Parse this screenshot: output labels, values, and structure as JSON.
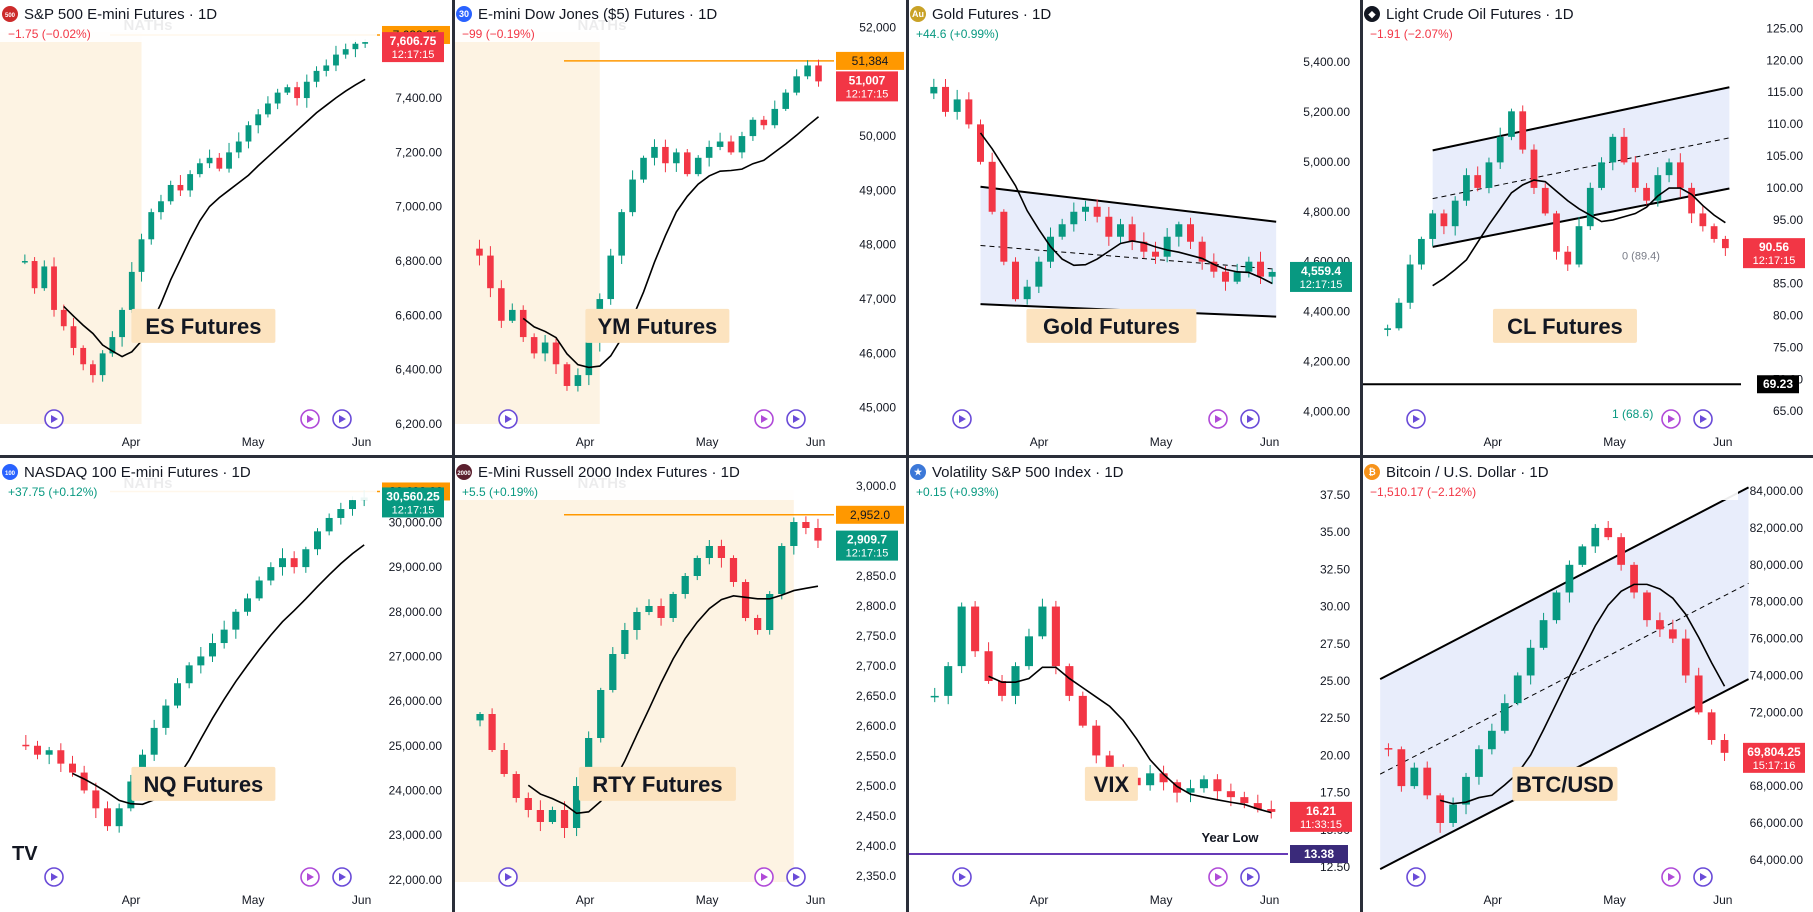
{
  "layout_grid": "4x2",
  "colors": {
    "up": "#089981",
    "down": "#f23645",
    "price_line_up": "#089981",
    "price_line_down": "#f23645",
    "high_line": "#ff9800",
    "channel_fill": "#e8edfb",
    "range_fill": "#fdf3e3",
    "label_box": "#fce3bf",
    "ma": "#000000"
  },
  "chart_data": [
    {
      "id": "es",
      "type": "candlestick",
      "symbol_badge": "500",
      "badge_color": "#cc2b2b",
      "title": "S&P 500 E-mini Futures · 1D",
      "change": "−1.75 (−0.02%)",
      "change_dir": "down",
      "annotation_top": "NATHs",
      "big_label": "ES Futures",
      "yticks": [
        "7,400.00",
        "7,200.00",
        "7,000.00",
        "6,800.00",
        "6,600.00",
        "6,400.00",
        "6,200.00"
      ],
      "ylim": [
        6200,
        7680
      ],
      "high_level": 7632.25,
      "high_label": "7,632.25",
      "price_label": "7,606.75",
      "timer": "12:17:15",
      "price_dir": "down",
      "xticks": [
        "Apr",
        "May",
        "Jun"
      ],
      "series_points": [
        6800,
        6700,
        6780,
        6620,
        6560,
        6480,
        6420,
        6380,
        6460,
        6520,
        6620,
        6760,
        6880,
        6980,
        7020,
        7080,
        7060,
        7120,
        7160,
        7180,
        7140,
        7200,
        7240,
        7300,
        7340,
        7380,
        7420,
        7440,
        7400,
        7460,
        7500,
        7520,
        7560,
        7580,
        7600,
        7606
      ]
    },
    {
      "id": "ym",
      "type": "candlestick",
      "symbol_badge": "30",
      "badge_color": "#2962ff",
      "title": "E-mini Dow Jones ($5) Futures · 1D",
      "change": "−99 (−0.19%)",
      "change_dir": "down",
      "annotation_top": "NATHs",
      "big_label": "YM Futures",
      "yticks": [
        "52,000",
        "51,000",
        "50,000",
        "49,000",
        "48,000",
        "47,000",
        "46,000",
        "45,000"
      ],
      "ylim": [
        44700,
        52100
      ],
      "high_level": 51384,
      "high_label": "51,384",
      "price_label": "51,007",
      "timer": "12:17:15",
      "price_dir": "down",
      "xticks": [
        "Apr",
        "May",
        "Jun"
      ],
      "series_points": [
        47800,
        47200,
        46600,
        46800,
        46300,
        46000,
        46200,
        45800,
        45400,
        45600,
        46200,
        47000,
        47800,
        48600,
        49200,
        49600,
        49800,
        49500,
        49700,
        49300,
        49600,
        49800,
        49900,
        49700,
        50000,
        50300,
        50200,
        50500,
        50800,
        51100,
        51300,
        51007
      ]
    },
    {
      "id": "gold",
      "type": "candlestick",
      "symbol_badge": "Au",
      "badge_color": "#c9a227",
      "title": "Gold Futures · 1D",
      "change": "+44.6 (+0.99%)",
      "change_dir": "up",
      "big_label": "Gold Futures",
      "yticks": [
        "5,400.00",
        "5,200.00",
        "5,000.00",
        "4,800.00",
        "4,600.00",
        "4,400.00",
        "4,200.00",
        "4,000.00"
      ],
      "ylim": [
        3950,
        5560
      ],
      "price_label": "4,559.4",
      "timer": "12:17:15",
      "price_dir": "up",
      "xticks": [
        "Apr",
        "May",
        "Jun"
      ],
      "series_points": [
        5300,
        5200,
        5250,
        5150,
        5000,
        4800,
        4600,
        4450,
        4500,
        4600,
        4700,
        4750,
        4800,
        4820,
        4780,
        4700,
        4750,
        4680,
        4640,
        4620,
        4700,
        4750,
        4680,
        4600,
        4560,
        4520,
        4560,
        4600,
        4540,
        4559
      ]
    },
    {
      "id": "cl",
      "type": "candlestick",
      "symbol_badge": "◆",
      "badge_color": "#131722",
      "title": "Light Crude Oil Futures · 1D",
      "change": "−1.91 (−2.07%)",
      "change_dir": "down",
      "big_label": "CL Futures",
      "fib_label": "0 (89.4)",
      "footnote": "1 (68.6)",
      "yticks": [
        "125.00",
        "120.00",
        "115.00",
        "110.00",
        "105.00",
        "100.00",
        "95.00",
        "90.00",
        "85.00",
        "80.00",
        "75.00",
        "70.00",
        "65.00"
      ],
      "ylim": [
        63,
        126
      ],
      "marker_level": 69.23,
      "marker_label": "69.23",
      "price_label": "90.56",
      "timer": "12:17:15",
      "price_dir": "down",
      "xticks": [
        "Apr",
        "May",
        "Jun"
      ],
      "series_points": [
        78,
        82,
        88,
        92,
        96,
        94,
        98,
        102,
        100,
        104,
        108,
        112,
        106,
        100,
        96,
        90,
        88,
        94,
        100,
        104,
        108,
        104,
        100,
        98,
        102,
        104,
        100,
        96,
        94,
        92,
        90.56
      ]
    },
    {
      "id": "nq",
      "type": "candlestick",
      "symbol_badge": "100",
      "badge_color": "#2962ff",
      "title": "NASDAQ 100 E-mini Futures · 1D",
      "change": "+37.75 (+0.12%)",
      "change_dir": "up",
      "annotation_top": "NATHs",
      "big_label": "NQ Futures",
      "yticks": [
        "30,000.00",
        "29,000.00",
        "28,000.00",
        "27,000.00",
        "26,000.00",
        "25,000.00",
        "24,000.00",
        "23,000.00",
        "22,000.00"
      ],
      "ylim": [
        21950,
        30950
      ],
      "high_level": 30693,
      "high_label": "30,693.00",
      "price_label": "30,560.25",
      "timer": "12:17:15",
      "price_dir": "up",
      "xticks": [
        "Apr",
        "May",
        "Jun"
      ],
      "series_points": [
        25000,
        24800,
        24900,
        24600,
        24400,
        24000,
        23600,
        23200,
        23600,
        24200,
        24800,
        25400,
        25900,
        26400,
        26800,
        27000,
        27300,
        27600,
        28000,
        28300,
        28700,
        29000,
        29200,
        29000,
        29400,
        29800,
        30100,
        30300,
        30500,
        30560
      ]
    },
    {
      "id": "rty",
      "type": "candlestick",
      "symbol_badge": "2000",
      "badge_color": "#5b1f2e",
      "title": "E-Mini Russell 2000 Index Futures · 1D",
      "change": "+5.5 (+0.19%)",
      "change_dir": "up",
      "annotation_top": "NATHs",
      "big_label": "RTY Futures",
      "yticks": [
        "3,000.0",
        "2,950.0",
        "2,900.0",
        "2,850.0",
        "2,800.0",
        "2,750.0",
        "2,700.0",
        "2,650.0",
        "2,600.0",
        "2,550.0",
        "2,500.0",
        "2,450.0",
        "2,400.0",
        "2,350.0"
      ],
      "ylim": [
        2340,
        3010
      ],
      "high_level": 2952.0,
      "high_label": "2,952.0",
      "price_label": "2,909.7",
      "timer": "12:17:15",
      "price_dir": "up",
      "xticks": [
        "Apr",
        "May",
        "Jun"
      ],
      "series_points": [
        2620,
        2560,
        2520,
        2480,
        2460,
        2440,
        2460,
        2430,
        2500,
        2580,
        2660,
        2720,
        2760,
        2790,
        2800,
        2780,
        2820,
        2850,
        2880,
        2900,
        2880,
        2840,
        2780,
        2760,
        2820,
        2900,
        2940,
        2930,
        2909
      ]
    },
    {
      "id": "vix",
      "type": "candlestick",
      "symbol_badge": "★",
      "badge_color": "#3c78d8",
      "title": "Volatility S&P 500 Index · 1D",
      "change": "+0.15 (+0.93%)",
      "change_dir": "up",
      "big_label": "VIX",
      "low_note": "Year Low",
      "yticks": [
        "37.50",
        "35.00",
        "32.50",
        "30.00",
        "27.50",
        "25.00",
        "22.50",
        "20.00",
        "17.50",
        "15.00",
        "12.50"
      ],
      "ylim": [
        11.5,
        38.5
      ],
      "low_level": 13.38,
      "low_label": "13.38",
      "price_label": "16.21",
      "timer": "11:33:15",
      "price_dir": "down",
      "xticks": [
        "Apr",
        "May",
        "Jun"
      ],
      "series_points": [
        24,
        26,
        30,
        27,
        25,
        24,
        26,
        28,
        30,
        26,
        24,
        22,
        20,
        19,
        18.5,
        18,
        18.8,
        18.2,
        17.5,
        17.8,
        18.4,
        17.6,
        17.2,
        16.8,
        16.4,
        16.21
      ]
    },
    {
      "id": "btc",
      "type": "candlestick",
      "symbol_badge": "₿",
      "badge_color": "#f7931a",
      "title": "Bitcoin / U.S. Dollar · 1D",
      "change": "−1,510.17 (−2.12%)",
      "change_dir": "down",
      "big_label": "BTC/USD",
      "yticks": [
        "84,000.00",
        "82,000.00",
        "80,000.00",
        "78,000.00",
        "76,000.00",
        "74,000.00",
        "72,000.00",
        "70,000.00",
        "68,000.00",
        "66,000.00",
        "64,000.00"
      ],
      "ylim": [
        62800,
        84600
      ],
      "price_label": "69,804.25",
      "timer": "15:17:16",
      "price_dir": "down",
      "xticks": [
        "Apr",
        "May",
        "Jun"
      ],
      "series_points": [
        70000,
        68000,
        69000,
        67500,
        66000,
        67000,
        68500,
        70000,
        71000,
        72500,
        74000,
        75500,
        77000,
        78500,
        80000,
        81000,
        82000,
        81500,
        80000,
        78500,
        77000,
        76500,
        76000,
        74000,
        72000,
        70500,
        69804
      ]
    }
  ],
  "brand_logo_text": "TV"
}
